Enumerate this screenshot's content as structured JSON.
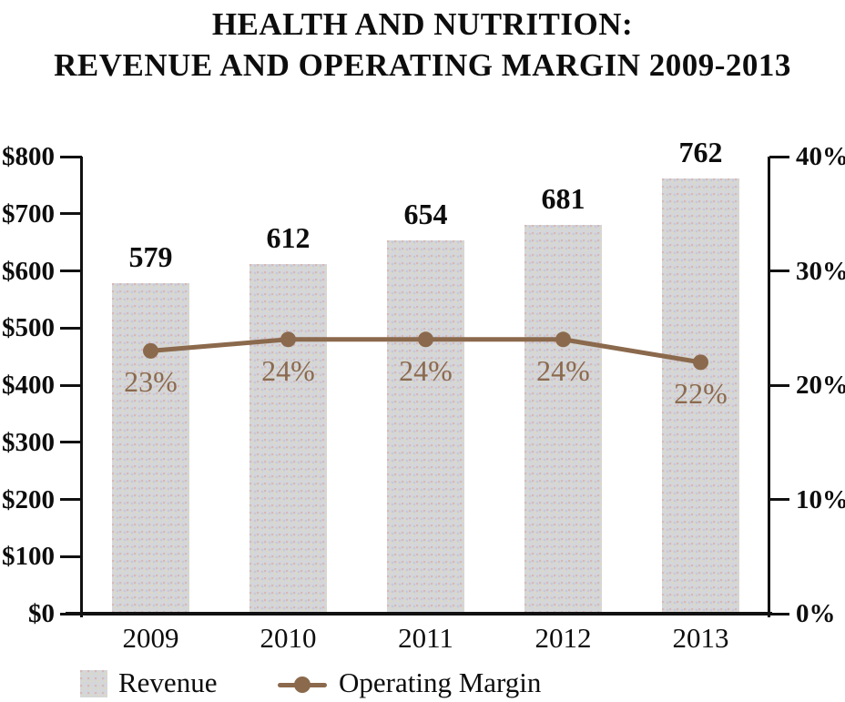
{
  "chart_data": {
    "type": "combo",
    "title_lines": [
      "HEALTH AND NUTRITION:",
      "REVENUE AND OPERATING MARGIN 2009-2013"
    ],
    "categories": [
      "2009",
      "2010",
      "2011",
      "2012",
      "2013"
    ],
    "series": [
      {
        "name": "Revenue",
        "type": "bar",
        "axis": "left",
        "values": [
          579,
          612,
          654,
          681,
          762
        ],
        "labels": [
          "579",
          "612",
          "654",
          "681",
          "762"
        ],
        "color": "#d4d6d9"
      },
      {
        "name": "Operating Margin",
        "type": "line",
        "axis": "right",
        "values": [
          23,
          24,
          24,
          24,
          22
        ],
        "labels": [
          "23%",
          "24%",
          "24%",
          "24%",
          "22%"
        ],
        "color": "#8b694c"
      }
    ],
    "left_axis": {
      "min": 0,
      "max": 800,
      "tick_step": 100,
      "tick_labels": [
        "$0",
        "$100",
        "$200",
        "$300",
        "$400",
        "$500",
        "$600",
        "$700",
        "$800"
      ]
    },
    "right_axis": {
      "min": 0,
      "max": 40,
      "tick_step": 10,
      "tick_labels": [
        "0%",
        "10%",
        "20%",
        "30%",
        "40%"
      ]
    },
    "legend": {
      "items": [
        {
          "label": "Revenue",
          "swatch": "bar"
        },
        {
          "label": "Operating Margin",
          "swatch": "line"
        }
      ]
    },
    "colors": {
      "bar": "#d4d6d9",
      "line": "#8b694c",
      "pct_label": "#8b6a4f",
      "text": "#0d0d0d"
    },
    "layout_hints": {
      "grid": "off",
      "legend_position": "bottom-left",
      "bar_value_labels": "above",
      "line_value_labels": "below"
    }
  }
}
